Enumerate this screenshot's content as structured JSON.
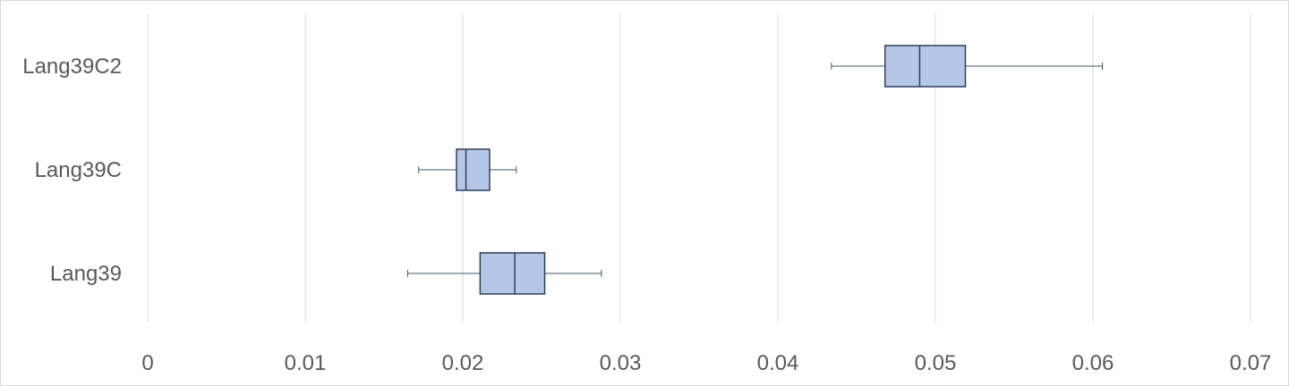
{
  "chart_data": {
    "type": "boxplot",
    "orientation": "horizontal",
    "title": "",
    "xlabel": "",
    "ylabel": "",
    "xlim": [
      0,
      0.07
    ],
    "x_ticks": [
      "0",
      "0.01",
      "0.02",
      "0.03",
      "0.04",
      "0.05",
      "0.06",
      "0.07"
    ],
    "grid": "vertical",
    "legend": "none",
    "box_color": "#b4c7e7",
    "edge_color": "#2f3f5c",
    "categories": [
      "Lang39C2",
      "Lang39C",
      "Lang39"
    ],
    "series": [
      {
        "category": "Lang39C2",
        "min": 0.0434,
        "q1": 0.0468,
        "median": 0.049,
        "q3": 0.0519,
        "max": 0.0606
      },
      {
        "category": "Lang39C",
        "min": 0.0172,
        "q1": 0.0196,
        "median": 0.0202,
        "q3": 0.0217,
        "max": 0.0234
      },
      {
        "category": "Lang39",
        "min": 0.0165,
        "q1": 0.0211,
        "median": 0.0233,
        "q3": 0.0252,
        "max": 0.0288
      }
    ]
  }
}
